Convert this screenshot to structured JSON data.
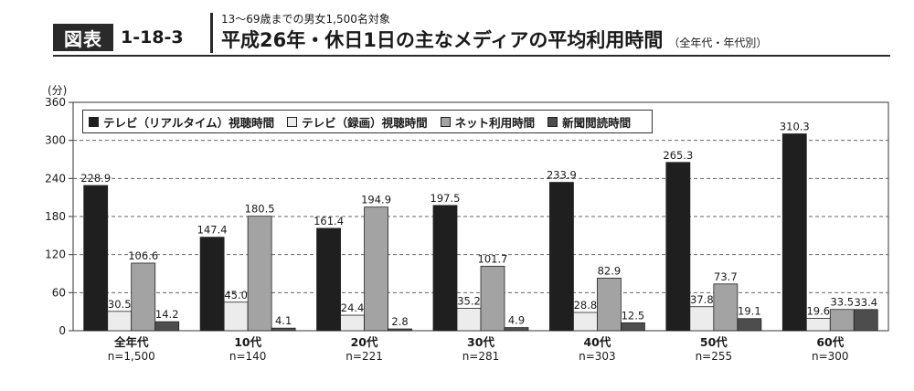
{
  "header": {
    "badge": "図表",
    "figure_number": "1-18-3",
    "subtitle": "13〜69歳までの男女1,500名対象",
    "title": "平成26年・休日1日の主なメディアの平均利用時間",
    "title_note": "（全年代・年代別）"
  },
  "chart_data": {
    "type": "bar",
    "unit_label": "(分)",
    "ylim": [
      0,
      360
    ],
    "yticks": [
      0,
      60,
      120,
      180,
      240,
      300,
      360
    ],
    "grid": "dashed horizontal",
    "legend_position": "top-left",
    "categories": [
      "全年代",
      "10代",
      "20代",
      "30代",
      "40代",
      "50代",
      "60代"
    ],
    "category_notes": [
      "n=1,500",
      "n=140",
      "n=221",
      "n=281",
      "n=303",
      "n=255",
      "n=300"
    ],
    "series": [
      {
        "name": "テレビ（リアルタイム）視聴時間",
        "color": "#1f1f1f",
        "values": [
          228.9,
          147.4,
          161.4,
          197.5,
          233.9,
          265.3,
          310.3
        ]
      },
      {
        "name": "テレビ（録画）視聴時間",
        "color": "#ececec",
        "values": [
          30.5,
          45.0,
          24.4,
          35.2,
          28.8,
          37.8,
          19.6
        ]
      },
      {
        "name": "ネット利用時間",
        "color": "#a3a3a3",
        "values": [
          106.6,
          180.5,
          194.9,
          101.7,
          82.9,
          73.7,
          33.5
        ]
      },
      {
        "name": "新聞閲読時間",
        "color": "#4d4d4d",
        "values": [
          14.2,
          4.1,
          2.8,
          4.9,
          12.5,
          19.1,
          33.4
        ]
      }
    ]
  }
}
